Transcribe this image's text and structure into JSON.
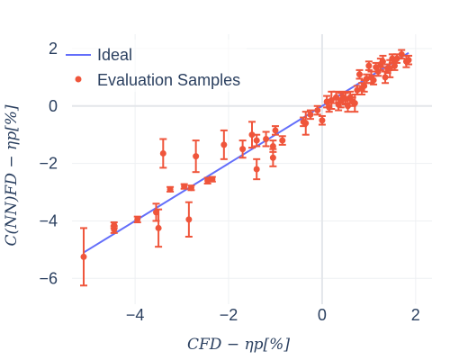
{
  "chart_data": {
    "type": "scatter",
    "xlabel": "CFD − ηp[%]",
    "ylabel": "C(NN)FD − ηp[%]",
    "xlim": [
      -5.35,
      2.35
    ],
    "ylim": [
      -6.9,
      2.5
    ],
    "xticks": [
      -4,
      -2,
      0,
      2
    ],
    "yticks": [
      -6,
      -4,
      -2,
      0,
      2
    ],
    "xtick_labels": [
      "−4",
      "−2",
      "0",
      "2"
    ],
    "ytick_labels": [
      "−6",
      "−4",
      "−2",
      "0",
      "2"
    ],
    "grid": true,
    "legend_position": "top-left",
    "series": [
      {
        "name": "Ideal",
        "kind": "line",
        "color": "#636efa",
        "x": [
          -5.1,
          1.85
        ],
        "y": [
          -5.1,
          1.85
        ]
      },
      {
        "name": "Evaluation Samples",
        "kind": "scatter",
        "color": "#ef553b",
        "points": [
          {
            "x": -5.1,
            "y": -5.25,
            "e": 1.0
          },
          {
            "x": -4.45,
            "y": -4.3,
            "e": 0.12
          },
          {
            "x": -4.45,
            "y": -4.15,
            "e": 0.1
          },
          {
            "x": -3.95,
            "y": -3.95,
            "e": 0.1
          },
          {
            "x": -3.55,
            "y": -3.7,
            "e": 0.3
          },
          {
            "x": -3.5,
            "y": -4.25,
            "e": 0.65
          },
          {
            "x": -3.4,
            "y": -1.65,
            "e": 0.5
          },
          {
            "x": -3.25,
            "y": -2.9,
            "e": 0.08
          },
          {
            "x": -2.95,
            "y": -2.8,
            "e": 0.08
          },
          {
            "x": -2.85,
            "y": -3.95,
            "e": 0.6
          },
          {
            "x": -2.8,
            "y": -2.85,
            "e": 0.08
          },
          {
            "x": -2.7,
            "y": -1.75,
            "e": 0.55
          },
          {
            "x": -2.45,
            "y": -2.6,
            "e": 0.1
          },
          {
            "x": -2.35,
            "y": -2.55,
            "e": 0.08
          },
          {
            "x": -2.1,
            "y": -1.35,
            "e": 0.5
          },
          {
            "x": -1.7,
            "y": -1.5,
            "e": 0.3
          },
          {
            "x": -1.5,
            "y": -1.0,
            "e": 0.45
          },
          {
            "x": -1.4,
            "y": -1.2,
            "e": 0.2
          },
          {
            "x": -1.4,
            "y": -2.2,
            "e": 0.35
          },
          {
            "x": -1.2,
            "y": -1.15,
            "e": 0.25
          },
          {
            "x": -1.05,
            "y": -1.8,
            "e": 0.3
          },
          {
            "x": -1.05,
            "y": -1.4,
            "e": 0.2
          },
          {
            "x": -1.0,
            "y": -0.85,
            "e": 0.15
          },
          {
            "x": -0.85,
            "y": -1.2,
            "e": 0.15
          },
          {
            "x": -0.4,
            "y": -0.55,
            "e": 0.15
          },
          {
            "x": -0.35,
            "y": -0.6,
            "e": 0.4
          },
          {
            "x": -0.25,
            "y": -0.3,
            "e": 0.15
          },
          {
            "x": -0.1,
            "y": -0.15,
            "e": 0.15
          },
          {
            "x": 0.0,
            "y": -0.5,
            "e": 0.15
          },
          {
            "x": 0.1,
            "y": 0.15,
            "e": 0.2
          },
          {
            "x": 0.15,
            "y": -0.05,
            "e": 0.15
          },
          {
            "x": 0.2,
            "y": 0.2,
            "e": 0.3
          },
          {
            "x": 0.3,
            "y": 0.3,
            "e": 0.2
          },
          {
            "x": 0.35,
            "y": 0.05,
            "e": 0.2
          },
          {
            "x": 0.4,
            "y": 0.2,
            "e": 0.25
          },
          {
            "x": 0.45,
            "y": 0.3,
            "e": 0.2
          },
          {
            "x": 0.5,
            "y": 0.25,
            "e": 0.2
          },
          {
            "x": 0.55,
            "y": 0.0,
            "e": 0.2
          },
          {
            "x": 0.6,
            "y": 0.3,
            "e": 0.2
          },
          {
            "x": 0.65,
            "y": 0.15,
            "e": 0.15
          },
          {
            "x": 0.7,
            "y": 0.1,
            "e": 0.3
          },
          {
            "x": 0.75,
            "y": 0.55,
            "e": 0.15
          },
          {
            "x": 0.8,
            "y": 1.1,
            "e": 0.15
          },
          {
            "x": 0.85,
            "y": 0.6,
            "e": 0.2
          },
          {
            "x": 0.9,
            "y": 0.7,
            "e": 0.2
          },
          {
            "x": 0.95,
            "y": 0.95,
            "e": 0.15
          },
          {
            "x": 1.0,
            "y": 1.4,
            "e": 0.15
          },
          {
            "x": 1.05,
            "y": 1.0,
            "e": 0.2
          },
          {
            "x": 1.1,
            "y": 0.9,
            "e": 0.15
          },
          {
            "x": 1.15,
            "y": 1.35,
            "e": 0.15
          },
          {
            "x": 1.2,
            "y": 1.2,
            "e": 0.15
          },
          {
            "x": 1.25,
            "y": 1.45,
            "e": 0.2
          },
          {
            "x": 1.3,
            "y": 1.55,
            "e": 0.2
          },
          {
            "x": 1.35,
            "y": 1.0,
            "e": 0.2
          },
          {
            "x": 1.4,
            "y": 1.3,
            "e": 0.15
          },
          {
            "x": 1.45,
            "y": 1.3,
            "e": 0.3
          },
          {
            "x": 1.5,
            "y": 1.65,
            "e": 0.15
          },
          {
            "x": 1.55,
            "y": 1.4,
            "e": 0.15
          },
          {
            "x": 1.6,
            "y": 1.65,
            "e": 0.15
          },
          {
            "x": 1.7,
            "y": 1.8,
            "e": 0.15
          },
          {
            "x": 1.8,
            "y": 1.55,
            "e": 0.2
          },
          {
            "x": 1.85,
            "y": 1.6,
            "e": 0.15
          }
        ]
      }
    ]
  }
}
